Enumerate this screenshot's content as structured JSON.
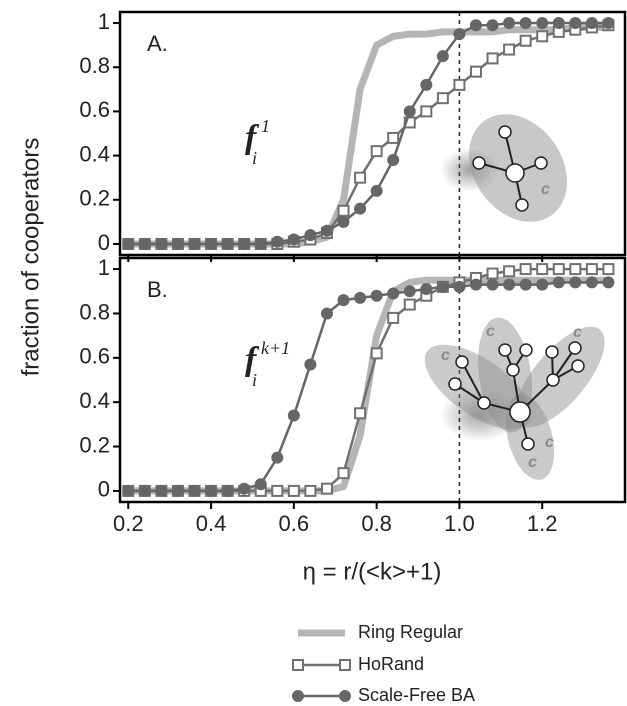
{
  "chart_data": [
    {
      "type": "line",
      "panel_label": "A.",
      "y_label": "fraction of cooperators",
      "annotation": {
        "base": "f",
        "sub": "i",
        "sup": "1"
      },
      "inset_label": "c",
      "x": [
        0.2,
        0.24,
        0.28,
        0.32,
        0.36,
        0.4,
        0.44,
        0.48,
        0.52,
        0.56,
        0.6,
        0.64,
        0.68,
        0.72,
        0.76,
        0.8,
        0.84,
        0.88,
        0.92,
        0.96,
        1.0,
        1.04,
        1.08,
        1.12,
        1.16,
        1.2,
        1.24,
        1.28,
        1.32,
        1.36
      ],
      "xlim": [
        0.18,
        1.4
      ],
      "xticks": [
        0.2,
        0.4,
        0.6,
        0.8,
        {
          "value": 1,
          "label": "1.0"
        },
        1.2
      ],
      "ylim": [
        -0.05,
        1.05
      ],
      "yticks": [
        0,
        0.2,
        0.4,
        0.6,
        0.8,
        1
      ],
      "reference_x": 1,
      "series": [
        {
          "color": "#b5b5b5",
          "marker": "none",
          "values": [
            0,
            0,
            0,
            0,
            0,
            0,
            0,
            0,
            0,
            0,
            0,
            0.01,
            0.03,
            0.2,
            0.7,
            0.9,
            0.94,
            0.95,
            0.95,
            0.96,
            0.96,
            0.96,
            0.96,
            0.97,
            0.97,
            0.97,
            0.97,
            0.98,
            0.98,
            0.98
          ]
        },
        {
          "color": "#707070",
          "marker": "square",
          "values": [
            0,
            0,
            0,
            0,
            0,
            0,
            0,
            0,
            0,
            0,
            0.01,
            0.02,
            0.05,
            0.15,
            0.3,
            0.42,
            0.48,
            0.55,
            0.6,
            0.66,
            0.72,
            0.78,
            0.84,
            0.88,
            0.92,
            0.94,
            0.96,
            0.97,
            0.98,
            0.99
          ]
        },
        {
          "color": "#666666",
          "marker": "circle",
          "values": [
            0,
            0,
            0,
            0,
            0,
            0,
            0,
            0,
            0,
            0.01,
            0.02,
            0.04,
            0.06,
            0.1,
            0.16,
            0.24,
            0.38,
            0.6,
            0.72,
            0.85,
            0.95,
            0.99,
            0.99,
            1,
            1,
            1,
            1,
            1,
            1,
            1
          ]
        }
      ]
    },
    {
      "type": "line",
      "panel_label": "B.",
      "x_label": "η = r/(<k>+1)",
      "annotation": {
        "base": "f",
        "sub": "i",
        "sup": "k+1"
      },
      "inset_label": "c",
      "x": [
        0.2,
        0.24,
        0.28,
        0.32,
        0.36,
        0.4,
        0.44,
        0.48,
        0.52,
        0.56,
        0.6,
        0.64,
        0.68,
        0.72,
        0.76,
        0.8,
        0.84,
        0.88,
        0.92,
        0.96,
        1.0,
        1.04,
        1.08,
        1.12,
        1.16,
        1.2,
        1.24,
        1.28,
        1.32,
        1.36
      ],
      "xlim": [
        0.18,
        1.4
      ],
      "xticks": [
        0.2,
        0.4,
        0.6,
        0.8,
        {
          "value": 1,
          "label": "1.0"
        },
        1.2
      ],
      "ylim": [
        -0.05,
        1.05
      ],
      "yticks": [
        0,
        0.2,
        0.4,
        0.6,
        0.8,
        1
      ],
      "reference_x": 1,
      "series": [
        {
          "name": "Ring Regular",
          "color": "#b5b5b5",
          "marker": "none",
          "values": [
            0,
            0,
            0,
            0,
            0,
            0,
            0,
            0,
            0,
            0,
            0,
            0,
            0,
            0.02,
            0.25,
            0.7,
            0.9,
            0.94,
            0.95,
            0.95,
            0.95,
            0.95,
            0.95,
            0.95,
            0.95,
            0.95,
            0.95,
            0.95,
            0.95,
            0.95
          ]
        },
        {
          "name": "HoRand",
          "color": "#707070",
          "marker": "square",
          "values": [
            0,
            0,
            0,
            0,
            0,
            0,
            0,
            0,
            0,
            0,
            0,
            0,
            0.01,
            0.08,
            0.35,
            0.62,
            0.78,
            0.84,
            0.88,
            0.92,
            0.94,
            0.96,
            0.98,
            0.99,
            1,
            1,
            1,
            1,
            1,
            1
          ]
        },
        {
          "name": "Scale-Free BA",
          "color": "#666666",
          "marker": "circle",
          "values": [
            0,
            0,
            0,
            0,
            0,
            0,
            0,
            0.01,
            0.03,
            0.15,
            0.34,
            0.57,
            0.8,
            0.86,
            0.87,
            0.88,
            0.89,
            0.9,
            0.91,
            0.92,
            0.92,
            0.93,
            0.93,
            0.93,
            0.93,
            0.93,
            0.94,
            0.94,
            0.94,
            0.94
          ]
        }
      ]
    }
  ]
}
